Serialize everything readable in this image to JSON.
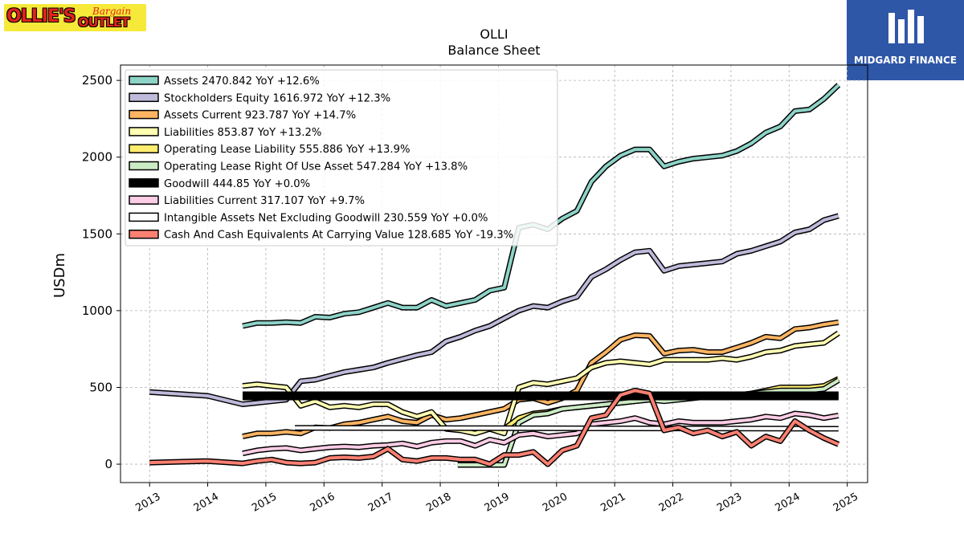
{
  "branding": {
    "left_logo_text": "OLLIE'S",
    "left_logo_subtext": "Bargain",
    "left_logo_subtext2": "OUTLET",
    "right_logo_text": "MIDGARD FINANCE"
  },
  "chart_data": {
    "type": "line",
    "title": "OLLI",
    "subtitle": "Balance  Sheet",
    "ylabel": "USDm",
    "xlabel": "",
    "xlim": [
      2012.5,
      2025.35
    ],
    "ylim": [
      -120,
      2600
    ],
    "yticks": [
      0,
      500,
      1000,
      1500,
      2000,
      2500
    ],
    "xticks": [
      "2013",
      "2014",
      "2015",
      "2016",
      "2017",
      "2018",
      "2019",
      "2020",
      "2021",
      "2022",
      "2023",
      "2024",
      "2025"
    ],
    "grid": true,
    "legend_position": "top-left",
    "series": [
      {
        "name": "Assets",
        "legend": "Assets  2470.842 YoY +12.6%",
        "color": "#8dd3c7",
        "width": 4,
        "x": [
          2014.6,
          2014.85,
          2015.1,
          2015.35,
          2015.6,
          2015.85,
          2016.1,
          2016.35,
          2016.6,
          2016.85,
          2017.1,
          2017.35,
          2017.6,
          2017.85,
          2018.1,
          2018.35,
          2018.6,
          2018.85,
          2019.1,
          2019.35,
          2019.6,
          2019.85,
          2020.1,
          2020.35,
          2020.6,
          2020.85,
          2021.1,
          2021.35,
          2021.6,
          2021.85,
          2022.1,
          2022.35,
          2022.6,
          2022.85,
          2023.1,
          2023.35,
          2023.6,
          2023.85,
          2024.1,
          2024.35,
          2024.6,
          2024.85
        ],
        "y": [
          900,
          920,
          920,
          925,
          920,
          960,
          955,
          980,
          990,
          1020,
          1050,
          1020,
          1020,
          1070,
          1030,
          1050,
          1070,
          1130,
          1150,
          1540,
          1560,
          1530,
          1600,
          1650,
          1840,
          1940,
          2010,
          2050,
          2050,
          1940,
          1970,
          1990,
          2000,
          2010,
          2040,
          2090,
          2160,
          2200,
          2300,
          2310,
          2380,
          2470
        ]
      },
      {
        "name": "Stockholders Equity",
        "legend": "Stockholders Equity  1616.972 YoY +12.3%",
        "color": "#bebada",
        "width": 4,
        "x": [
          2013.0,
          2014.0,
          2014.6,
          2014.85,
          2015.1,
          2015.35,
          2015.6,
          2015.85,
          2016.1,
          2016.35,
          2016.6,
          2016.85,
          2017.1,
          2017.35,
          2017.6,
          2017.85,
          2018.1,
          2018.35,
          2018.6,
          2018.85,
          2019.1,
          2019.35,
          2019.6,
          2019.85,
          2020.1,
          2020.35,
          2020.6,
          2020.85,
          2021.1,
          2021.35,
          2021.6,
          2021.85,
          2022.1,
          2022.35,
          2022.6,
          2022.85,
          2023.1,
          2023.35,
          2023.6,
          2023.85,
          2024.1,
          2024.35,
          2024.6,
          2024.85
        ],
        "y": [
          470,
          445,
          390,
          400,
          410,
          420,
          540,
          550,
          575,
          600,
          615,
          630,
          660,
          685,
          710,
          730,
          800,
          830,
          870,
          900,
          950,
          1000,
          1030,
          1020,
          1060,
          1090,
          1220,
          1270,
          1330,
          1380,
          1390,
          1260,
          1290,
          1300,
          1310,
          1320,
          1370,
          1390,
          1420,
          1450,
          1510,
          1530,
          1590,
          1617
        ]
      },
      {
        "name": "Assets Current",
        "legend": "Assets Current  923.787 YoY +14.7%",
        "color": "#fdb462",
        "width": 4,
        "x": [
          2014.6,
          2014.85,
          2015.1,
          2015.35,
          2015.6,
          2015.85,
          2016.1,
          2016.35,
          2016.6,
          2016.85,
          2017.1,
          2017.35,
          2017.6,
          2017.85,
          2018.1,
          2018.35,
          2018.6,
          2018.85,
          2019.1,
          2019.35,
          2019.6,
          2019.85,
          2020.1,
          2020.35,
          2020.6,
          2020.85,
          2021.1,
          2021.35,
          2021.6,
          2021.85,
          2022.1,
          2022.35,
          2022.6,
          2022.85,
          2023.1,
          2023.35,
          2023.6,
          2023.85,
          2024.1,
          2024.35,
          2024.6,
          2024.85
        ],
        "y": [
          180,
          200,
          200,
          210,
          200,
          240,
          235,
          260,
          270,
          290,
          310,
          280,
          270,
          320,
          290,
          300,
          320,
          340,
          360,
          420,
          430,
          400,
          430,
          480,
          660,
          730,
          810,
          840,
          835,
          720,
          740,
          745,
          730,
          730,
          760,
          790,
          830,
          820,
          880,
          890,
          910,
          924
        ]
      },
      {
        "name": "Liabilities",
        "legend": "Liabilities  853.87 YoY +13.2%",
        "color": "#ffffb3",
        "width": 4,
        "x": [
          2014.6,
          2014.85,
          2015.1,
          2015.35,
          2015.6,
          2015.85,
          2016.1,
          2016.35,
          2016.6,
          2016.85,
          2017.1,
          2017.35,
          2017.6,
          2017.85,
          2018.1,
          2018.35,
          2018.6,
          2018.85,
          2019.1,
          2019.35,
          2019.6,
          2019.85,
          2020.1,
          2020.35,
          2020.6,
          2020.85,
          2021.1,
          2021.35,
          2021.6,
          2021.85,
          2022.1,
          2022.35,
          2022.6,
          2022.85,
          2023.1,
          2023.35,
          2023.6,
          2023.85,
          2024.1,
          2024.35,
          2024.6,
          2024.85
        ],
        "y": [
          510,
          520,
          510,
          500,
          380,
          410,
          370,
          380,
          370,
          390,
          390,
          340,
          310,
          340,
          230,
          220,
          200,
          230,
          200,
          500,
          530,
          520,
          540,
          560,
          630,
          660,
          670,
          660,
          650,
          680,
          680,
          680,
          680,
          690,
          680,
          700,
          730,
          740,
          770,
          780,
          790,
          854
        ]
      },
      {
        "name": "Operating Lease Liability",
        "legend": "Operating Lease Liability  555.886 YoY +13.9%",
        "color": "#ffed6f",
        "width": 4,
        "x": [
          2019.1,
          2019.35,
          2019.6,
          2019.85,
          2020.1,
          2020.35,
          2020.6,
          2020.85,
          2021.1,
          2021.35,
          2021.6,
          2021.85,
          2022.1,
          2022.35,
          2022.6,
          2022.85,
          2023.1,
          2023.35,
          2023.6,
          2023.85,
          2024.1,
          2024.35,
          2024.6,
          2024.85
        ],
        "y": [
          230,
          300,
          330,
          340,
          360,
          370,
          380,
          390,
          400,
          410,
          420,
          420,
          430,
          440,
          440,
          450,
          450,
          460,
          480,
          500,
          500,
          500,
          510,
          556
        ]
      },
      {
        "name": "Operating Lease Right Of Use Asset",
        "legend": "Operating Lease Right Of Use Asset  547.284 YoY +13.8%",
        "color": "#ccebc5",
        "width": 4,
        "x": [
          2018.3,
          2018.6,
          2018.85,
          2019.1,
          2019.35,
          2019.6,
          2019.85,
          2020.1,
          2020.35,
          2020.6,
          2020.85,
          2021.1,
          2021.35,
          2021.6,
          2021.85,
          2022.1,
          2022.35,
          2022.6,
          2022.85,
          2023.1,
          2023.35,
          2023.6,
          2023.85,
          2024.1,
          2024.35,
          2024.6,
          2024.85
        ],
        "y": [
          -5,
          -5,
          -5,
          -5,
          270,
          320,
          330,
          360,
          370,
          380,
          390,
          400,
          410,
          420,
          410,
          420,
          430,
          440,
          440,
          440,
          460,
          470,
          480,
          480,
          480,
          490,
          547
        ]
      },
      {
        "name": "Goodwill",
        "legend": "Goodwill  444.85 YoY +0.0%",
        "color": "#000000",
        "width": 8,
        "x": [
          2014.6,
          2024.85
        ],
        "y": [
          444.85,
          444.85
        ]
      },
      {
        "name": "Liabilities Current",
        "legend": "Liabilities Current  317.107 YoY +9.7%",
        "color": "#fccde5",
        "width": 4,
        "x": [
          2014.6,
          2014.85,
          2015.1,
          2015.35,
          2015.6,
          2015.85,
          2016.1,
          2016.35,
          2016.6,
          2016.85,
          2017.1,
          2017.35,
          2017.6,
          2017.85,
          2018.1,
          2018.35,
          2018.6,
          2018.85,
          2019.1,
          2019.35,
          2019.6,
          2019.85,
          2020.1,
          2020.35,
          2020.6,
          2020.85,
          2021.1,
          2021.35,
          2021.6,
          2021.85,
          2022.1,
          2022.35,
          2022.6,
          2022.85,
          2023.1,
          2023.35,
          2023.6,
          2023.85,
          2024.1,
          2024.35,
          2024.6,
          2024.85
        ],
        "y": [
          70,
          90,
          100,
          105,
          90,
          100,
          110,
          115,
          110,
          120,
          125,
          135,
          115,
          140,
          150,
          150,
          120,
          160,
          140,
          190,
          200,
          180,
          190,
          200,
          260,
          270,
          280,
          300,
          270,
          260,
          280,
          270,
          270,
          270,
          280,
          290,
          310,
          300,
          330,
          320,
          300,
          317
        ]
      },
      {
        "name": "Intangible Assets Net Excluding Goodwill",
        "legend": "Intangible Assets Net Excluding Goodwill  230.559 YoY +0.0%",
        "color": "#ffffff",
        "width": 4,
        "x": [
          2015.5,
          2024.85
        ],
        "y": [
          236,
          231
        ]
      },
      {
        "name": "Cash And Cash Equivalents At Carrying Value",
        "legend": "Cash And Cash Equivalents At Carrying Value  128.685 YoY -19.3%",
        "color": "#fb8072",
        "width": 4,
        "x": [
          2013.0,
          2014.0,
          2014.6,
          2014.85,
          2015.1,
          2015.35,
          2015.6,
          2015.85,
          2016.1,
          2016.35,
          2016.6,
          2016.85,
          2017.1,
          2017.35,
          2017.6,
          2017.85,
          2018.1,
          2018.35,
          2018.6,
          2018.85,
          2019.1,
          2019.35,
          2019.6,
          2019.85,
          2020.1,
          2020.35,
          2020.6,
          2020.85,
          2021.1,
          2021.35,
          2021.6,
          2021.85,
          2022.1,
          2022.35,
          2022.6,
          2022.85,
          2023.1,
          2023.35,
          2023.6,
          2023.85,
          2024.1,
          2024.35,
          2024.6,
          2024.85
        ],
        "y": [
          10,
          20,
          5,
          20,
          30,
          10,
          5,
          10,
          40,
          45,
          40,
          50,
          100,
          30,
          20,
          40,
          40,
          30,
          30,
          0,
          60,
          60,
          80,
          0,
          90,
          120,
          300,
          320,
          450,
          480,
          460,
          220,
          240,
          200,
          220,
          180,
          210,
          120,
          180,
          150,
          280,
          220,
          170,
          129
        ]
      }
    ]
  }
}
